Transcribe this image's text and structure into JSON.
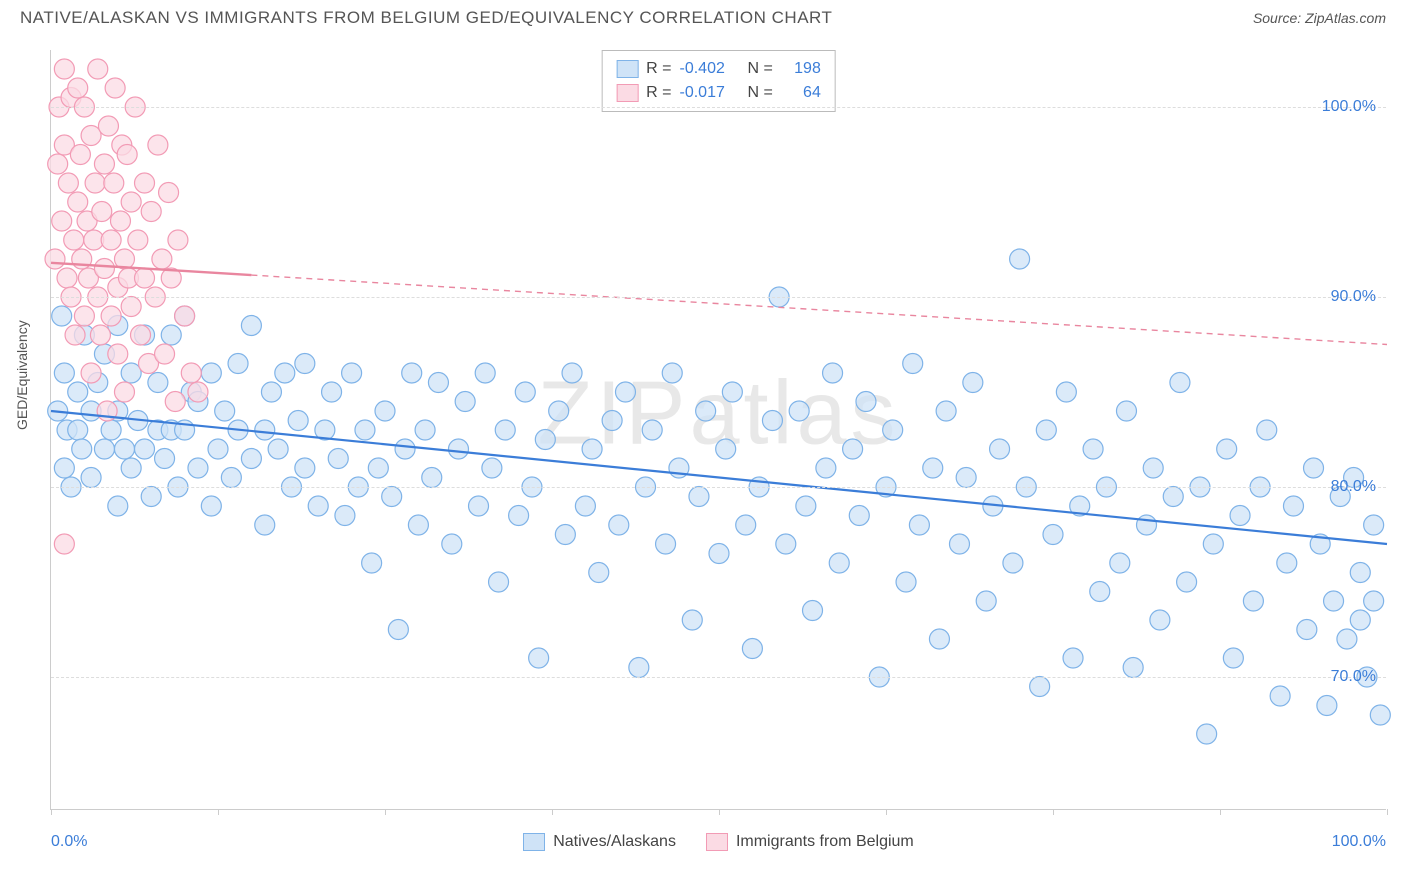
{
  "header": {
    "title": "NATIVE/ALASKAN VS IMMIGRANTS FROM BELGIUM GED/EQUIVALENCY CORRELATION CHART",
    "source": "Source: ZipAtlas.com"
  },
  "chart": {
    "type": "scatter",
    "ylabel": "GED/Equivalency",
    "watermark": "ZIPatlas",
    "background_color": "#ffffff",
    "grid_color": "#dddddd",
    "axis_color": "#cccccc",
    "xlim": [
      0,
      100
    ],
    "ylim": [
      63,
      103
    ],
    "yticks": [
      70,
      80,
      90,
      100
    ],
    "ytick_labels": [
      "70.0%",
      "80.0%",
      "90.0%",
      "100.0%"
    ],
    "xtick_positions": [
      0,
      12.5,
      25,
      37.5,
      50,
      62.5,
      75,
      87.5,
      100
    ],
    "xaxis_end_labels": [
      "0.0%",
      "100.0%"
    ],
    "marker_radius": 10,
    "marker_stroke_width": 1.2,
    "series": [
      {
        "name": "Natives/Alaskans",
        "fill": "#cfe3f7",
        "stroke": "#7fb3e8",
        "R": "-0.402",
        "N": "198",
        "trend": {
          "x1": 0,
          "y1": 84.0,
          "x2": 100,
          "y2": 77.0,
          "color": "#3b7dd8",
          "width": 2.2,
          "dash": ""
        },
        "points": [
          [
            0.5,
            84
          ],
          [
            0.8,
            89
          ],
          [
            1,
            86
          ],
          [
            1,
            81
          ],
          [
            1.2,
            83
          ],
          [
            1.5,
            80
          ],
          [
            2,
            85
          ],
          [
            2,
            83
          ],
          [
            2.3,
            82
          ],
          [
            2.5,
            88
          ],
          [
            3,
            84
          ],
          [
            3,
            80.5
          ],
          [
            3.5,
            85.5
          ],
          [
            4,
            82
          ],
          [
            4,
            87
          ],
          [
            4.5,
            83
          ],
          [
            5,
            79
          ],
          [
            5,
            84
          ],
          [
            5,
            88.5
          ],
          [
            5.5,
            82
          ],
          [
            6,
            81
          ],
          [
            6,
            86
          ],
          [
            6.5,
            83.5
          ],
          [
            7,
            82
          ],
          [
            7,
            88
          ],
          [
            7.5,
            79.5
          ],
          [
            8,
            83
          ],
          [
            8,
            85.5
          ],
          [
            8.5,
            81.5
          ],
          [
            9,
            83
          ],
          [
            9,
            88
          ],
          [
            9.5,
            80
          ],
          [
            10,
            89
          ],
          [
            10,
            83
          ],
          [
            10.5,
            85
          ],
          [
            11,
            81
          ],
          [
            11,
            84.5
          ],
          [
            12,
            86
          ],
          [
            12,
            79
          ],
          [
            12.5,
            82
          ],
          [
            13,
            84
          ],
          [
            13.5,
            80.5
          ],
          [
            14,
            83
          ],
          [
            14,
            86.5
          ],
          [
            15,
            81.5
          ],
          [
            15,
            88.5
          ],
          [
            16,
            83
          ],
          [
            16,
            78
          ],
          [
            16.5,
            85
          ],
          [
            17,
            82
          ],
          [
            17.5,
            86
          ],
          [
            18,
            80
          ],
          [
            18.5,
            83.5
          ],
          [
            19,
            81
          ],
          [
            19,
            86.5
          ],
          [
            20,
            79
          ],
          [
            20.5,
            83
          ],
          [
            21,
            85
          ],
          [
            21.5,
            81.5
          ],
          [
            22,
            78.5
          ],
          [
            22.5,
            86
          ],
          [
            23,
            80
          ],
          [
            23.5,
            83
          ],
          [
            24,
            76
          ],
          [
            24.5,
            81
          ],
          [
            25,
            84
          ],
          [
            25.5,
            79.5
          ],
          [
            26,
            72.5
          ],
          [
            26.5,
            82
          ],
          [
            27,
            86
          ],
          [
            27.5,
            78
          ],
          [
            28,
            83
          ],
          [
            28.5,
            80.5
          ],
          [
            29,
            85.5
          ],
          [
            30,
            77
          ],
          [
            30.5,
            82
          ],
          [
            31,
            84.5
          ],
          [
            32,
            79
          ],
          [
            32.5,
            86
          ],
          [
            33,
            81
          ],
          [
            33.5,
            75
          ],
          [
            34,
            83
          ],
          [
            35,
            78.5
          ],
          [
            35.5,
            85
          ],
          [
            36,
            80
          ],
          [
            36.5,
            71
          ],
          [
            37,
            82.5
          ],
          [
            38,
            84
          ],
          [
            38.5,
            77.5
          ],
          [
            39,
            86
          ],
          [
            40,
            79
          ],
          [
            40.5,
            82
          ],
          [
            41,
            75.5
          ],
          [
            42,
            83.5
          ],
          [
            42.5,
            78
          ],
          [
            43,
            85
          ],
          [
            44,
            70.5
          ],
          [
            44.5,
            80
          ],
          [
            45,
            83
          ],
          [
            46,
            77
          ],
          [
            46.5,
            86
          ],
          [
            47,
            81
          ],
          [
            48,
            73
          ],
          [
            48.5,
            79.5
          ],
          [
            49,
            84
          ],
          [
            50,
            76.5
          ],
          [
            50.5,
            82
          ],
          [
            51,
            85
          ],
          [
            52,
            78
          ],
          [
            52.5,
            71.5
          ],
          [
            53,
            80
          ],
          [
            54,
            83.5
          ],
          [
            54.5,
            90
          ],
          [
            55,
            77
          ],
          [
            56,
            84
          ],
          [
            56.5,
            79
          ],
          [
            57,
            73.5
          ],
          [
            58,
            81
          ],
          [
            58.5,
            86
          ],
          [
            59,
            76
          ],
          [
            60,
            82
          ],
          [
            60.5,
            78.5
          ],
          [
            61,
            84.5
          ],
          [
            62,
            70
          ],
          [
            62.5,
            80
          ],
          [
            63,
            83
          ],
          [
            64,
            75
          ],
          [
            64.5,
            86.5
          ],
          [
            65,
            78
          ],
          [
            66,
            81
          ],
          [
            66.5,
            72
          ],
          [
            67,
            84
          ],
          [
            68,
            77
          ],
          [
            68.5,
            80.5
          ],
          [
            69,
            85.5
          ],
          [
            70,
            74
          ],
          [
            70.5,
            79
          ],
          [
            71,
            82
          ],
          [
            72,
            76
          ],
          [
            72.5,
            92
          ],
          [
            73,
            80
          ],
          [
            74,
            69.5
          ],
          [
            74.5,
            83
          ],
          [
            75,
            77.5
          ],
          [
            76,
            85
          ],
          [
            76.5,
            71
          ],
          [
            77,
            79
          ],
          [
            78,
            82
          ],
          [
            78.5,
            74.5
          ],
          [
            79,
            80
          ],
          [
            80,
            76
          ],
          [
            80.5,
            84
          ],
          [
            81,
            70.5
          ],
          [
            82,
            78
          ],
          [
            82.5,
            81
          ],
          [
            83,
            73
          ],
          [
            84,
            79.5
          ],
          [
            84.5,
            85.5
          ],
          [
            85,
            75
          ],
          [
            86,
            80
          ],
          [
            86.5,
            67
          ],
          [
            87,
            77
          ],
          [
            88,
            82
          ],
          [
            88.5,
            71
          ],
          [
            89,
            78.5
          ],
          [
            90,
            74
          ],
          [
            90.5,
            80
          ],
          [
            91,
            83
          ],
          [
            92,
            69
          ],
          [
            92.5,
            76
          ],
          [
            93,
            79
          ],
          [
            94,
            72.5
          ],
          [
            94.5,
            81
          ],
          [
            95,
            77
          ],
          [
            95.5,
            68.5
          ],
          [
            96,
            74
          ],
          [
            96.5,
            79.5
          ],
          [
            97,
            72
          ],
          [
            97.5,
            80.5
          ],
          [
            98,
            75.5
          ],
          [
            98,
            73
          ],
          [
            98.5,
            70
          ],
          [
            99,
            78
          ],
          [
            99,
            74
          ],
          [
            99.5,
            68
          ]
        ]
      },
      {
        "name": "Immigrants from Belgium",
        "fill": "#fbdbe4",
        "stroke": "#f29bb5",
        "R": "-0.017",
        "N": "64",
        "trend": {
          "x1": 0,
          "y1": 91.8,
          "x2": 100,
          "y2": 87.5,
          "color": "#e9869f",
          "width": 1.4,
          "dash": "6 5",
          "solid_until": 15
        },
        "points": [
          [
            0.3,
            92
          ],
          [
            0.5,
            97
          ],
          [
            0.6,
            100
          ],
          [
            0.8,
            94
          ],
          [
            1,
            102
          ],
          [
            1,
            98
          ],
          [
            1.2,
            91
          ],
          [
            1.3,
            96
          ],
          [
            1.5,
            90
          ],
          [
            1.5,
            100.5
          ],
          [
            1.7,
            93
          ],
          [
            1.8,
            88
          ],
          [
            2,
            101
          ],
          [
            2,
            95
          ],
          [
            2.2,
            97.5
          ],
          [
            2.3,
            92
          ],
          [
            2.5,
            89
          ],
          [
            2.5,
            100
          ],
          [
            2.7,
            94
          ],
          [
            2.8,
            91
          ],
          [
            3,
            98.5
          ],
          [
            3,
            86
          ],
          [
            3.2,
            93
          ],
          [
            3.3,
            96
          ],
          [
            3.5,
            90
          ],
          [
            3.5,
            102
          ],
          [
            3.7,
            88
          ],
          [
            3.8,
            94.5
          ],
          [
            4,
            97
          ],
          [
            4,
            91.5
          ],
          [
            4.2,
            84
          ],
          [
            4.3,
            99
          ],
          [
            4.5,
            93
          ],
          [
            4.5,
            89
          ],
          [
            4.7,
            96
          ],
          [
            4.8,
            101
          ],
          [
            5,
            90.5
          ],
          [
            5,
            87
          ],
          [
            5.2,
            94
          ],
          [
            5.3,
            98
          ],
          [
            5.5,
            92
          ],
          [
            5.5,
            85
          ],
          [
            5.7,
            97.5
          ],
          [
            5.8,
            91
          ],
          [
            6,
            95
          ],
          [
            6,
            89.5
          ],
          [
            6.3,
            100
          ],
          [
            6.5,
            93
          ],
          [
            6.7,
            88
          ],
          [
            7,
            96
          ],
          [
            7,
            91
          ],
          [
            7.3,
            86.5
          ],
          [
            7.5,
            94.5
          ],
          [
            7.8,
            90
          ],
          [
            8,
            98
          ],
          [
            8.3,
            92
          ],
          [
            8.5,
            87
          ],
          [
            8.8,
            95.5
          ],
          [
            9,
            91
          ],
          [
            9.3,
            84.5
          ],
          [
            9.5,
            93
          ],
          [
            10,
            89
          ],
          [
            10.5,
            86
          ],
          [
            11,
            85
          ],
          [
            1,
            77
          ]
        ]
      }
    ],
    "bottom_legend": [
      {
        "label": "Natives/Alaskans",
        "fill": "#cfe3f7",
        "stroke": "#7fb3e8"
      },
      {
        "label": "Immigrants from Belgium",
        "fill": "#fbdbe4",
        "stroke": "#f29bb5"
      }
    ]
  }
}
